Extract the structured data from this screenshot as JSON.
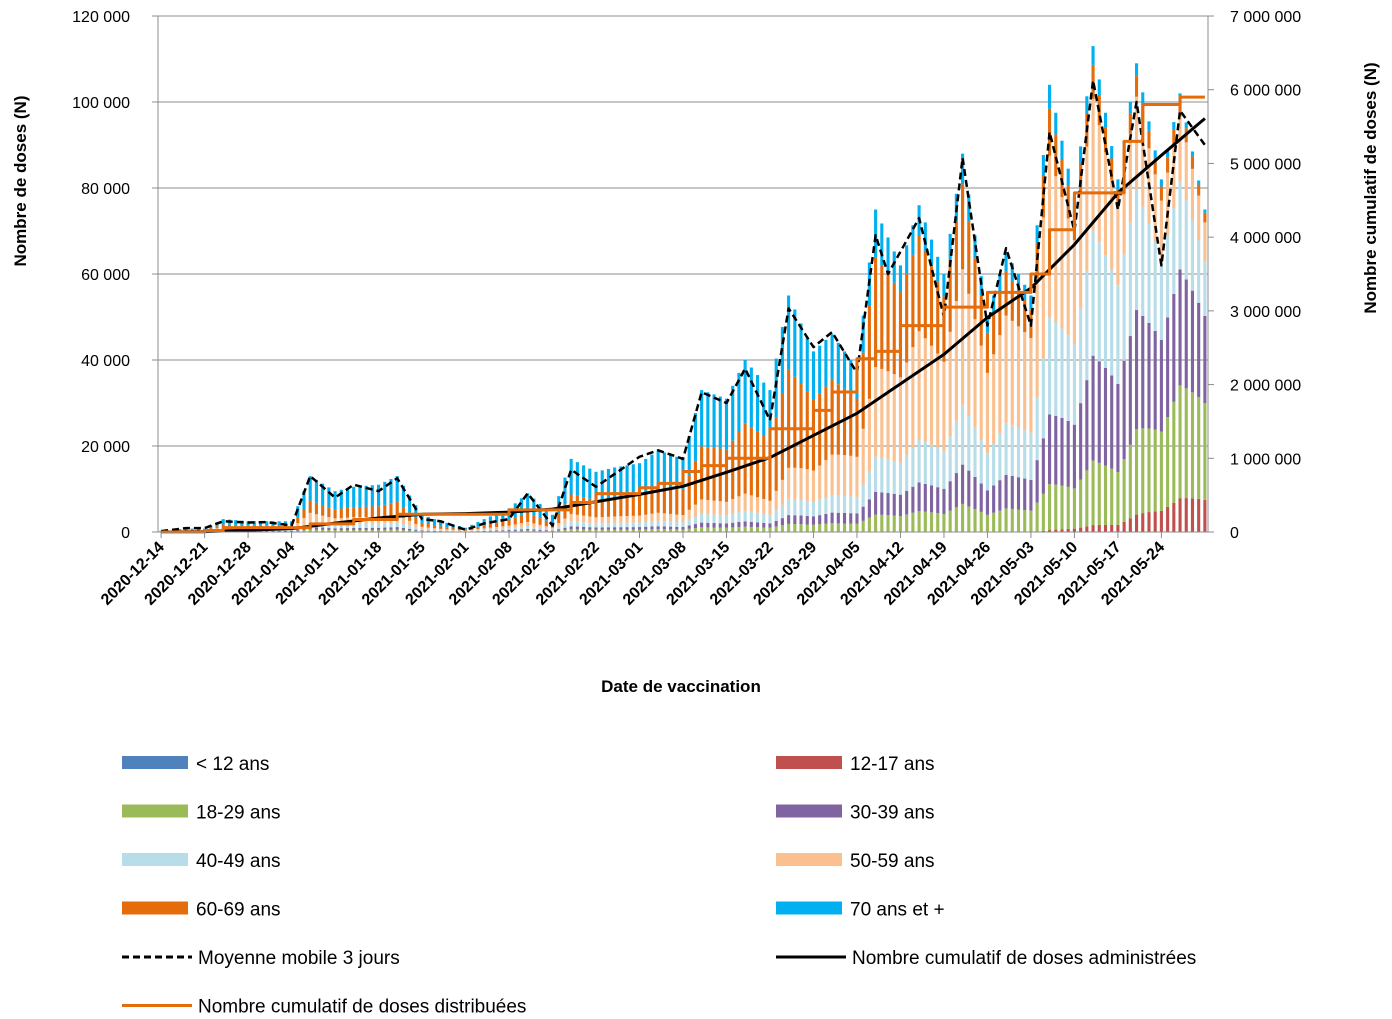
{
  "chart_data": {
    "type": "bar",
    "stacked": true,
    "xlabel": "Date de vaccination",
    "ylabel": "Nombre de doses (N)",
    "y2label": "Nombre cumulatif de doses (N)",
    "ylim": [
      0,
      120000
    ],
    "y2lim": [
      0,
      7000000
    ],
    "y_ticks": [
      "0",
      "20 000",
      "40 000",
      "60 000",
      "80 000",
      "100 000",
      "120 000"
    ],
    "y2_ticks": [
      "0",
      "1 000 000",
      "2 000 000",
      "3 000 000",
      "4 000 000",
      "5 000 000",
      "6 000 000",
      "7 000 000"
    ],
    "x_ticks": [
      "2020-12-14",
      "2020-12-21",
      "2020-12-28",
      "2021-01-04",
      "2021-01-11",
      "2021-01-18",
      "2021-01-25",
      "2021-02-01",
      "2021-02-08",
      "2021-02-15",
      "2021-02-22",
      "2021-03-01",
      "2021-03-08",
      "2021-03-15",
      "2021-03-22",
      "2021-03-29",
      "2021-04-05",
      "2021-04-12",
      "2021-04-19",
      "2021-04-26",
      "2021-05-03",
      "2021-05-10",
      "2021-05-17",
      "2021-05-24"
    ],
    "x_start": "2020-12-14",
    "x_end": "2021-05-31",
    "grid": true,
    "legend_position": "bottom",
    "bar_series": [
      {
        "name": "< 12 ans",
        "color": "#4F81BD"
      },
      {
        "name": "12-17 ans",
        "color": "#C0504D"
      },
      {
        "name": "18-29 ans",
        "color": "#9BBB59"
      },
      {
        "name": "30-39 ans",
        "color": "#8064A2"
      },
      {
        "name": "40-49 ans",
        "color": "#B7DDE8"
      },
      {
        "name": "50-59 ans",
        "color": "#FAC090"
      },
      {
        "name": "60-69 ans",
        "color": "#E46C0A"
      },
      {
        "name": "70 ans et +",
        "color": "#00B0F0"
      }
    ],
    "daily_total_points": [
      [
        "2020-12-14",
        300
      ],
      [
        "2020-12-18",
        800
      ],
      [
        "2020-12-21",
        800
      ],
      [
        "2020-12-24",
        3000
      ],
      [
        "2020-12-28",
        2500
      ],
      [
        "2020-12-31",
        2500
      ],
      [
        "2021-01-04",
        2500
      ],
      [
        "2021-01-07",
        13000
      ],
      [
        "2021-01-11",
        9500
      ],
      [
        "2021-01-14",
        10500
      ],
      [
        "2021-01-18",
        11000
      ],
      [
        "2021-01-21",
        13000
      ],
      [
        "2021-01-25",
        4000
      ],
      [
        "2021-01-28",
        2500
      ],
      [
        "2021-02-01",
        1000
      ],
      [
        "2021-02-04",
        3000
      ],
      [
        "2021-02-08",
        5500
      ],
      [
        "2021-02-11",
        9000
      ],
      [
        "2021-02-15",
        4000
      ],
      [
        "2021-02-18",
        17000
      ],
      [
        "2021-02-22",
        14000
      ],
      [
        "2021-02-25",
        15000
      ],
      [
        "2021-03-01",
        16000
      ],
      [
        "2021-03-04",
        19000
      ],
      [
        "2021-03-08",
        17000
      ],
      [
        "2021-03-11",
        33000
      ],
      [
        "2021-03-15",
        31000
      ],
      [
        "2021-03-18",
        40000
      ],
      [
        "2021-03-22",
        33000
      ],
      [
        "2021-03-25",
        55000
      ],
      [
        "2021-03-29",
        42000
      ],
      [
        "2021-04-01",
        46000
      ],
      [
        "2021-04-05",
        38000
      ],
      [
        "2021-04-08",
        75000
      ],
      [
        "2021-04-12",
        62000
      ],
      [
        "2021-04-15",
        76000
      ],
      [
        "2021-04-19",
        60000
      ],
      [
        "2021-04-22",
        88000
      ],
      [
        "2021-04-26",
        50000
      ],
      [
        "2021-04-29",
        65000
      ],
      [
        "2021-05-03",
        55000
      ],
      [
        "2021-05-06",
        104000
      ],
      [
        "2021-05-10",
        78000
      ],
      [
        "2021-05-13",
        113000
      ],
      [
        "2021-05-17",
        82000
      ],
      [
        "2021-05-20",
        109000
      ],
      [
        "2021-05-24",
        82000
      ],
      [
        "2021-05-27",
        102000
      ],
      [
        "2021-05-31",
        75000
      ]
    ],
    "group_share_points": [
      {
        "date": "2020-12-14",
        "shares": [
          0,
          0,
          0.05,
          0.05,
          0.1,
          0.2,
          0.2,
          0.4
        ]
      },
      {
        "date": "2021-02-15",
        "shares": [
          0,
          0,
          0.04,
          0.04,
          0.07,
          0.1,
          0.25,
          0.5
        ]
      },
      {
        "date": "2021-03-22",
        "shares": [
          0,
          0,
          0.03,
          0.03,
          0.06,
          0.1,
          0.43,
          0.35
        ]
      },
      {
        "date": "2021-04-12",
        "shares": [
          0,
          0,
          0.06,
          0.08,
          0.12,
          0.32,
          0.32,
          0.1
        ]
      },
      {
        "date": "2021-05-03",
        "shares": [
          0,
          0,
          0.09,
          0.13,
          0.2,
          0.4,
          0.12,
          0.06
        ]
      },
      {
        "date": "2021-05-17",
        "shares": [
          0,
          0.02,
          0.15,
          0.25,
          0.28,
          0.22,
          0.05,
          0.03
        ]
      },
      {
        "date": "2021-05-31",
        "shares": [
          0,
          0.1,
          0.3,
          0.27,
          0.17,
          0.12,
          0.03,
          0.01
        ]
      }
    ],
    "lines": [
      {
        "name": "Moyenne mobile 3 jours",
        "axis": "left",
        "style": "dashed",
        "color": "#000000",
        "points": [
          [
            "2020-12-14",
            200
          ],
          [
            "2020-12-18",
            900
          ],
          [
            "2020-12-21",
            900
          ],
          [
            "2020-12-24",
            2500
          ],
          [
            "2020-12-28",
            2200
          ],
          [
            "2020-12-31",
            2300
          ],
          [
            "2021-01-04",
            1500
          ],
          [
            "2021-01-07",
            13000
          ],
          [
            "2021-01-11",
            8000
          ],
          [
            "2021-01-14",
            11000
          ],
          [
            "2021-01-18",
            9500
          ],
          [
            "2021-01-21",
            12500
          ],
          [
            "2021-01-25",
            3000
          ],
          [
            "2021-01-28",
            2500
          ],
          [
            "2021-02-01",
            500
          ],
          [
            "2021-02-04",
            2000
          ],
          [
            "2021-02-08",
            3000
          ],
          [
            "2021-02-11",
            9000
          ],
          [
            "2021-02-15",
            1500
          ],
          [
            "2021-02-18",
            14500
          ],
          [
            "2021-02-22",
            10500
          ],
          [
            "2021-02-25",
            13500
          ],
          [
            "2021-03-01",
            17500
          ],
          [
            "2021-03-04",
            19000
          ],
          [
            "2021-03-08",
            17000
          ],
          [
            "2021-03-11",
            32500
          ],
          [
            "2021-03-15",
            30000
          ],
          [
            "2021-03-18",
            38000
          ],
          [
            "2021-03-22",
            26000
          ],
          [
            "2021-03-25",
            52000
          ],
          [
            "2021-03-29",
            43000
          ],
          [
            "2021-04-01",
            46500
          ],
          [
            "2021-04-05",
            37000
          ],
          [
            "2021-04-08",
            69000
          ],
          [
            "2021-04-10",
            60000
          ],
          [
            "2021-04-15",
            73000
          ],
          [
            "2021-04-19",
            50000
          ],
          [
            "2021-04-22",
            87000
          ],
          [
            "2021-04-26",
            48000
          ],
          [
            "2021-04-29",
            66000
          ],
          [
            "2021-05-03",
            48000
          ],
          [
            "2021-05-06",
            93000
          ],
          [
            "2021-05-10",
            70000
          ],
          [
            "2021-05-13",
            105000
          ],
          [
            "2021-05-17",
            75000
          ],
          [
            "2021-05-20",
            100000
          ],
          [
            "2021-05-24",
            62000
          ],
          [
            "2021-05-27",
            98000
          ],
          [
            "2021-05-31",
            90000
          ]
        ]
      },
      {
        "name": "Nombre cumulatif de doses administrées",
        "axis": "right",
        "style": "solid",
        "color": "#000000",
        "points": [
          [
            "2020-12-14",
            0
          ],
          [
            "2020-12-21",
            5000
          ],
          [
            "2020-12-28",
            25000
          ],
          [
            "2021-01-04",
            45000
          ],
          [
            "2021-01-11",
            120000
          ],
          [
            "2021-01-18",
            190000
          ],
          [
            "2021-01-25",
            240000
          ],
          [
            "2021-02-01",
            250000
          ],
          [
            "2021-02-08",
            270000
          ],
          [
            "2021-02-15",
            310000
          ],
          [
            "2021-02-22",
            410000
          ],
          [
            "2021-03-01",
            510000
          ],
          [
            "2021-03-08",
            620000
          ],
          [
            "2021-03-15",
            810000
          ],
          [
            "2021-03-22",
            1010000
          ],
          [
            "2021-03-29",
            1310000
          ],
          [
            "2021-04-05",
            1610000
          ],
          [
            "2021-04-12",
            2010000
          ],
          [
            "2021-04-19",
            2410000
          ],
          [
            "2021-04-26",
            2910000
          ],
          [
            "2021-05-03",
            3310000
          ],
          [
            "2021-05-10",
            3900000
          ],
          [
            "2021-05-17",
            4600000
          ],
          [
            "2021-05-24",
            5110000
          ],
          [
            "2021-05-31",
            5610000
          ]
        ]
      },
      {
        "name": "Nombre cumulatif de doses distribuées",
        "axis": "right",
        "style": "step",
        "color": "#E46C0A",
        "points": [
          [
            "2020-12-14",
            0
          ],
          [
            "2020-12-21",
            20000
          ],
          [
            "2020-12-24",
            60000
          ],
          [
            "2021-01-04",
            60000
          ],
          [
            "2021-01-07",
            110000
          ],
          [
            "2021-01-14",
            170000
          ],
          [
            "2021-01-21",
            240000
          ],
          [
            "2021-01-28",
            240000
          ],
          [
            "2021-02-08",
            300000
          ],
          [
            "2021-02-18",
            400000
          ],
          [
            "2021-02-22",
            520000
          ],
          [
            "2021-03-01",
            600000
          ],
          [
            "2021-03-04",
            660000
          ],
          [
            "2021-03-08",
            820000
          ],
          [
            "2021-03-11",
            900000
          ],
          [
            "2021-03-15",
            1000000
          ],
          [
            "2021-03-22",
            1400000
          ],
          [
            "2021-03-29",
            1650000
          ],
          [
            "2021-04-01",
            1900000
          ],
          [
            "2021-04-05",
            2350000
          ],
          [
            "2021-04-08",
            2450000
          ],
          [
            "2021-04-12",
            2800000
          ],
          [
            "2021-04-19",
            3050000
          ],
          [
            "2021-04-26",
            3250000
          ],
          [
            "2021-05-03",
            3500000
          ],
          [
            "2021-05-06",
            4100000
          ],
          [
            "2021-05-10",
            4600000
          ],
          [
            "2021-05-14",
            4600000
          ],
          [
            "2021-05-18",
            5300000
          ],
          [
            "2021-05-21",
            5800000
          ],
          [
            "2021-05-27",
            5900000
          ],
          [
            "2021-05-31",
            5900000
          ]
        ]
      }
    ],
    "legend": [
      {
        "label": "< 12 ans",
        "kind": "bar",
        "color": "#4F81BD"
      },
      {
        "label": "12-17 ans",
        "kind": "bar",
        "color": "#C0504D"
      },
      {
        "label": "18-29 ans",
        "kind": "bar",
        "color": "#9BBB59"
      },
      {
        "label": "30-39 ans",
        "kind": "bar",
        "color": "#8064A2"
      },
      {
        "label": "40-49 ans",
        "kind": "bar",
        "color": "#B7DDE8"
      },
      {
        "label": "50-59 ans",
        "kind": "bar",
        "color": "#FAC090"
      },
      {
        "label": "60-69 ans",
        "kind": "bar",
        "color": "#E46C0A"
      },
      {
        "label": "70 ans et +",
        "kind": "bar",
        "color": "#00B0F0"
      },
      {
        "label": "Moyenne mobile 3 jours",
        "kind": "dashed",
        "color": "#000000"
      },
      {
        "label": "Nombre cumulatif de doses administrées",
        "kind": "line",
        "color": "#000000"
      },
      {
        "label": "Nombre cumulatif de doses distribuées",
        "kind": "line",
        "color": "#E46C0A"
      }
    ]
  }
}
